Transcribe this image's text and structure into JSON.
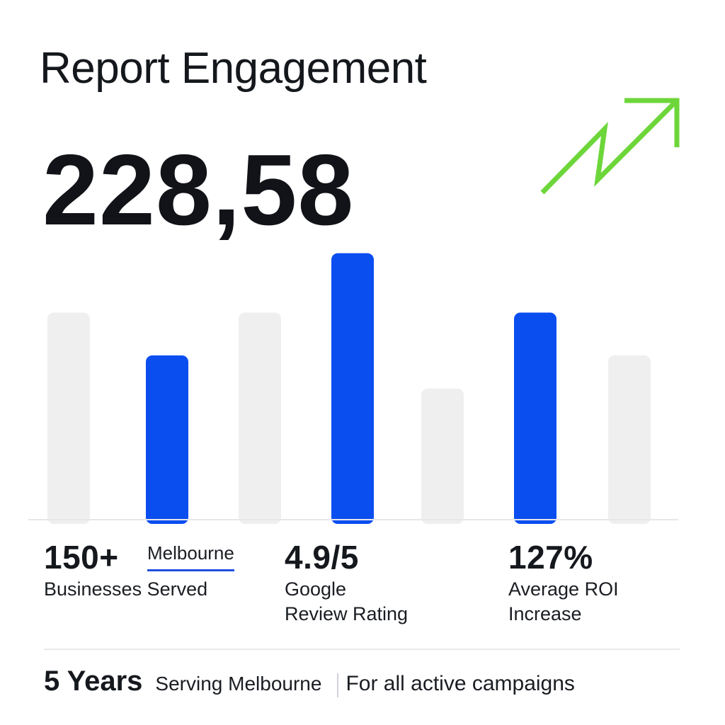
{
  "header": {
    "title": "Report Engagement",
    "headline_value": "228,58",
    "trend_icon": "trend-up-arrow-icon"
  },
  "colors": {
    "accent": "#0a4ef0",
    "muted_bar": "#efefef",
    "trend": "#6dd63a",
    "baseline": "#e6e7ea"
  },
  "chart_data": {
    "type": "bar",
    "title": "",
    "xlabel": "",
    "ylabel": "",
    "categories": [
      "",
      "",
      "",
      "",
      "",
      "",
      ""
    ],
    "values": [
      300,
      238,
      300,
      386,
      190,
      300,
      238
    ],
    "highlighted": [
      false,
      true,
      false,
      true,
      false,
      true,
      false
    ],
    "ylim": [
      0,
      400
    ],
    "grid": false,
    "legend": "none"
  },
  "stats": [
    {
      "value": "150+",
      "label_lines": [
        "Businesses Served"
      ],
      "tag": "Melbourne"
    },
    {
      "value": "4.9/5",
      "label_lines": [
        "Google",
        "Review Rating"
      ]
    },
    {
      "value": "127%",
      "label_lines": [
        "Average ROI",
        "Increase"
      ]
    }
  ],
  "footer": {
    "years": "5 Years",
    "serving": "Serving Melbourne",
    "note": "For all active campaigns"
  }
}
